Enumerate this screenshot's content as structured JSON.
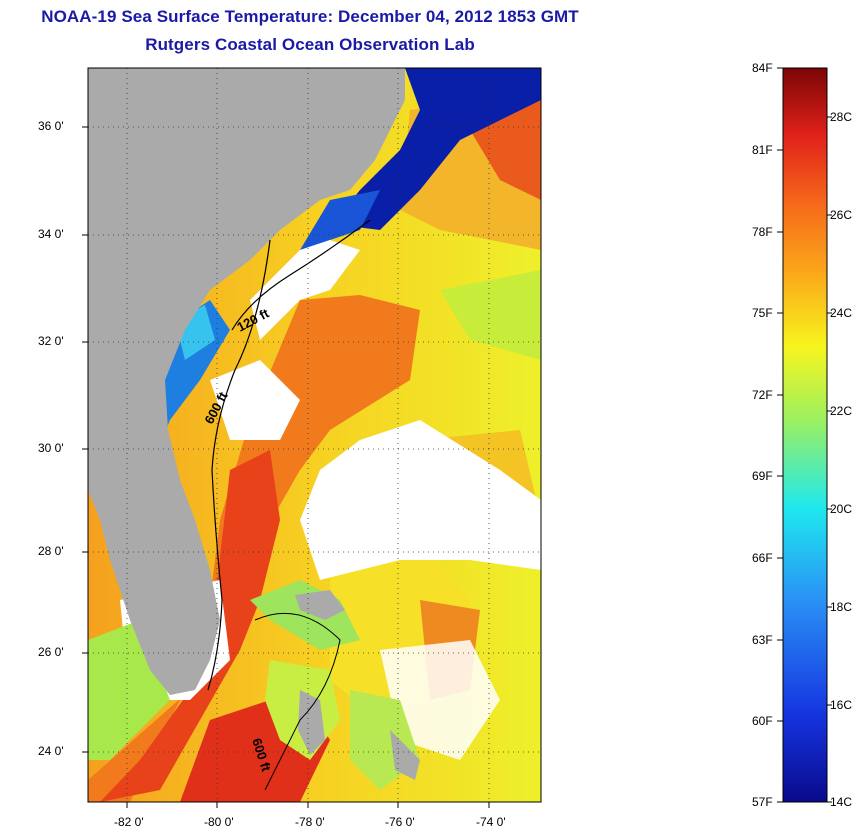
{
  "title": "NOAA-19 Sea Surface Temperature:  December 04, 2012 1853 GMT",
  "subtitle": "Rutgers Coastal Ocean Observation Lab",
  "lat_labels": [
    "36 0'",
    "34 0'",
    "32 0'",
    "30 0'",
    "28 0'",
    "26 0'",
    "24 0'"
  ],
  "lon_labels": [
    "-82 0'",
    "-80 0'",
    "-78 0'",
    "-76 0'",
    "-74 0'"
  ],
  "contours": {
    "shallow": "120 ft",
    "deep": "600 ft",
    "deep_south": "600 ft"
  },
  "colorbar": {
    "fahrenheit": [
      "84F",
      "81F",
      "78F",
      "75F",
      "72F",
      "69F",
      "66F",
      "63F",
      "60F",
      "57F"
    ],
    "celsius": [
      "28C",
      "26C",
      "24C",
      "22C",
      "20C",
      "18C",
      "16C",
      "14C"
    ]
  },
  "colors": {
    "land": "#aaaaaa",
    "cloud": "#ffffff",
    "title": "#1a1aa6"
  }
}
